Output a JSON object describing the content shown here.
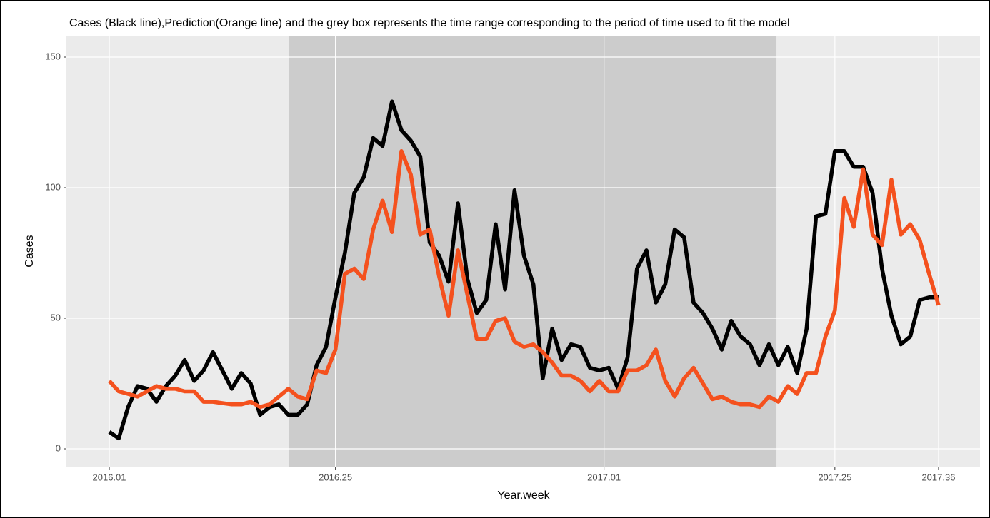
{
  "chart_data": {
    "type": "line",
    "title": "Cases (Black line),Prediction(Orange line) and the grey box represents the time range corresponding to the period of time used to fit the model",
    "x_label": "Year.week",
    "y_label": "Cases",
    "x": [
      0,
      1,
      2,
      3,
      4,
      5,
      6,
      7,
      8,
      9,
      10,
      11,
      12,
      13,
      14,
      15,
      16,
      17,
      18,
      19,
      20,
      21,
      22,
      23,
      24,
      25,
      26,
      27,
      28,
      29,
      30,
      31,
      32,
      33,
      34,
      35,
      36,
      37,
      38,
      39,
      40,
      41,
      42,
      43,
      44,
      45,
      46,
      47,
      48,
      49,
      50,
      51,
      52,
      53,
      54,
      55,
      56,
      57,
      58,
      59,
      60,
      61,
      62,
      63,
      64,
      65,
      66,
      67,
      68,
      69,
      70,
      71,
      72,
      73,
      74,
      75,
      76,
      77,
      78,
      79,
      80,
      81,
      82,
      83,
      84,
      85,
      86,
      87,
      88
    ],
    "series": [
      {
        "name": "Cases",
        "color": "#000000",
        "values": [
          6.5,
          4,
          16,
          24,
          23,
          18,
          24,
          28,
          34,
          26,
          30,
          37,
          30,
          23,
          29,
          25,
          13,
          16,
          17,
          13,
          13,
          17,
          32,
          39,
          58,
          75,
          98,
          104,
          119,
          116,
          133,
          122,
          118,
          112,
          79,
          74,
          64,
          94,
          65,
          52,
          57,
          86,
          61,
          99,
          74,
          63,
          27,
          46,
          34,
          40,
          39,
          31,
          30,
          31,
          23,
          35,
          69,
          76,
          56,
          63,
          84,
          81,
          56,
          52,
          46,
          38,
          49,
          43,
          40,
          32,
          40,
          32,
          39,
          29,
          46,
          89,
          90,
          114,
          114,
          108,
          108,
          98,
          69,
          51,
          40,
          43,
          57,
          58,
          58
        ]
      },
      {
        "name": "Prediction",
        "color": "#f4511e",
        "values": [
          26,
          22,
          21,
          20,
          22,
          24,
          23,
          23,
          22,
          22,
          18,
          18,
          17.5,
          17,
          17,
          18,
          16,
          17,
          20,
          23,
          20,
          19,
          30,
          29,
          38,
          67,
          69,
          65,
          84,
          95,
          83,
          114,
          105,
          82,
          84,
          66,
          51,
          76,
          59,
          42,
          42,
          49,
          50,
          41,
          39,
          40,
          37,
          33,
          28,
          28,
          26,
          22,
          26,
          22,
          22,
          30,
          30,
          32,
          38,
          26,
          20,
          27,
          31,
          25,
          19,
          20,
          18,
          17,
          17,
          16,
          20,
          18,
          24,
          21,
          29,
          29,
          43,
          53,
          96,
          85,
          107,
          82,
          78,
          103,
          82,
          86,
          80,
          67,
          55
        ]
      }
    ],
    "highlight_range": [
      19.1,
      70.8
    ],
    "xlim": [
      -4.55,
      92.4
    ],
    "xticks": [
      {
        "value": 0,
        "label": "2016.01"
      },
      {
        "value": 24,
        "label": "2016.25"
      },
      {
        "value": 52.5,
        "label": "2017.01"
      },
      {
        "value": 77,
        "label": "2017.25"
      },
      {
        "value": 88,
        "label": "2017.36"
      }
    ],
    "ylim": [
      -7.1,
      158.2
    ],
    "yticks": [
      0,
      50,
      100,
      150
    ],
    "grid": true
  }
}
